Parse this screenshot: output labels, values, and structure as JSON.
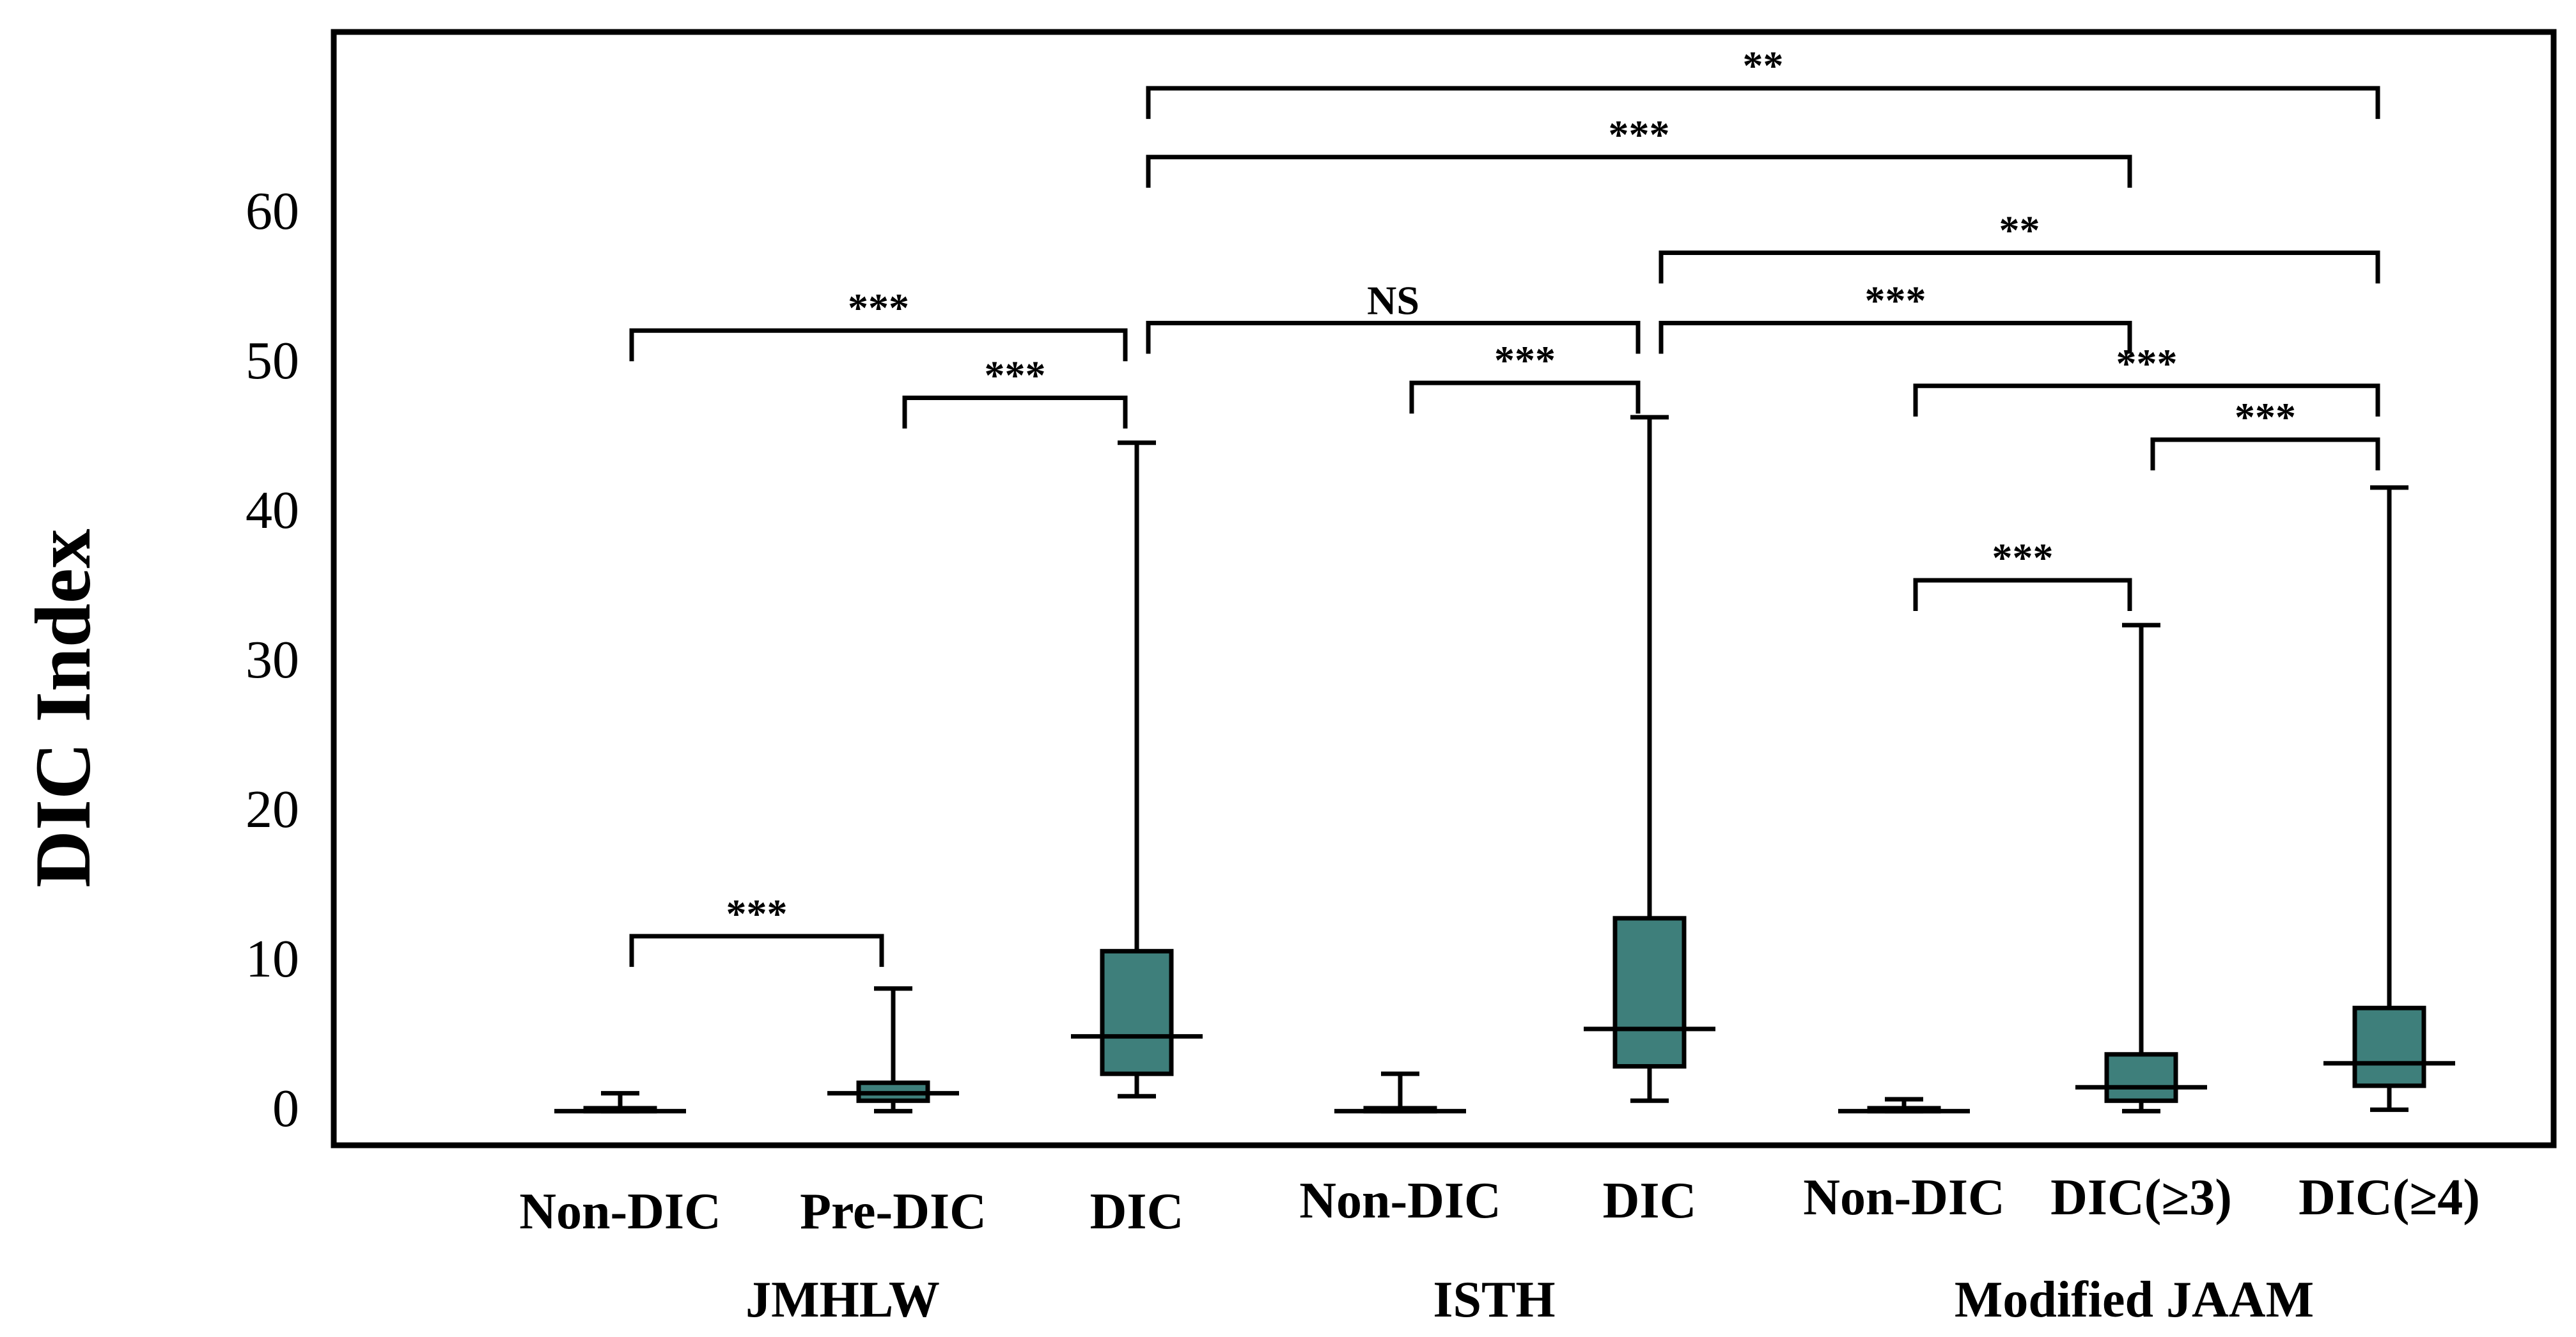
{
  "chart_data": {
    "type": "boxplot",
    "title": "",
    "xlabel": "",
    "ylabel": "DIC Index",
    "ylim": [
      -3,
      70
    ],
    "yticks": [
      0,
      10,
      20,
      30,
      40,
      50,
      60
    ],
    "grid": false,
    "colors": {
      "box_fill": "#3e7f7b",
      "stroke": "#000000",
      "background": "#ffffff"
    },
    "groups": [
      {
        "name": "JMHLW",
        "categories": [
          "Non-DIC",
          "Pre-DIC",
          "DIC"
        ]
      },
      {
        "name": "ISTH",
        "categories": [
          "Non-DIC",
          "DIC"
        ]
      },
      {
        "name": "Modified JAAM",
        "categories": [
          "Non-DIC",
          "DIC(≥3)",
          "DIC(≥4)"
        ]
      }
    ],
    "boxes": [
      {
        "group": "JMHLW",
        "category": "Non-DIC",
        "min": -0.2,
        "q1": -0.2,
        "median": -0.2,
        "q3": 0.0,
        "max": 1.0
      },
      {
        "group": "JMHLW",
        "category": "Pre-DIC",
        "min": -0.2,
        "q1": 0.5,
        "median": 1.0,
        "q3": 1.7,
        "max": 8.0
      },
      {
        "group": "JMHLW",
        "category": "DIC",
        "min": 0.8,
        "q1": 2.3,
        "median": 4.8,
        "q3": 10.5,
        "max": 44.5
      },
      {
        "group": "ISTH",
        "category": "Non-DIC",
        "min": -0.2,
        "q1": -0.2,
        "median": -0.2,
        "q3": 0.0,
        "max": 2.3
      },
      {
        "group": "ISTH",
        "category": "DIC",
        "min": 0.5,
        "q1": 2.8,
        "median": 5.3,
        "q3": 12.7,
        "max": 46.2
      },
      {
        "group": "Modified JAAM",
        "category": "Non-DIC",
        "min": -0.2,
        "q1": -0.2,
        "median": -0.2,
        "q3": 0.0,
        "max": 0.6
      },
      {
        "group": "Modified JAAM",
        "category": "DIC(≥3)",
        "min": -0.2,
        "q1": 0.5,
        "median": 1.4,
        "q3": 3.6,
        "max": 32.3
      },
      {
        "group": "Modified JAAM",
        "category": "DIC(≥4)",
        "min": -0.1,
        "q1": 1.5,
        "median": 3.0,
        "q3": 6.7,
        "max": 41.5
      }
    ],
    "significance": [
      {
        "from": 0,
        "to": 1,
        "y": 11.5,
        "label": "***"
      },
      {
        "from": 1,
        "to": 2,
        "y": 47.5,
        "label": "***"
      },
      {
        "from": 0,
        "to": 2,
        "y": 52.0,
        "label": "***"
      },
      {
        "from": 2,
        "to": 4,
        "y": 52.5,
        "label": "NS"
      },
      {
        "from": 3,
        "to": 4,
        "y": 48.5,
        "label": "***"
      },
      {
        "from": 4,
        "to": 6,
        "y": 52.5,
        "label": "***"
      },
      {
        "from": 4,
        "to": 7,
        "y": 57.2,
        "label": "**"
      },
      {
        "from": 2,
        "to": 6,
        "y": 63.6,
        "label": "***"
      },
      {
        "from": 2,
        "to": 7,
        "y": 68.2,
        "label": "**"
      },
      {
        "from": 5,
        "to": 6,
        "y": 35.3,
        "label": "***"
      },
      {
        "from": 5,
        "to": 7,
        "y": 48.3,
        "label": "***"
      },
      {
        "from": 6,
        "to": 7,
        "y": 44.7,
        "label": "***"
      }
    ]
  }
}
